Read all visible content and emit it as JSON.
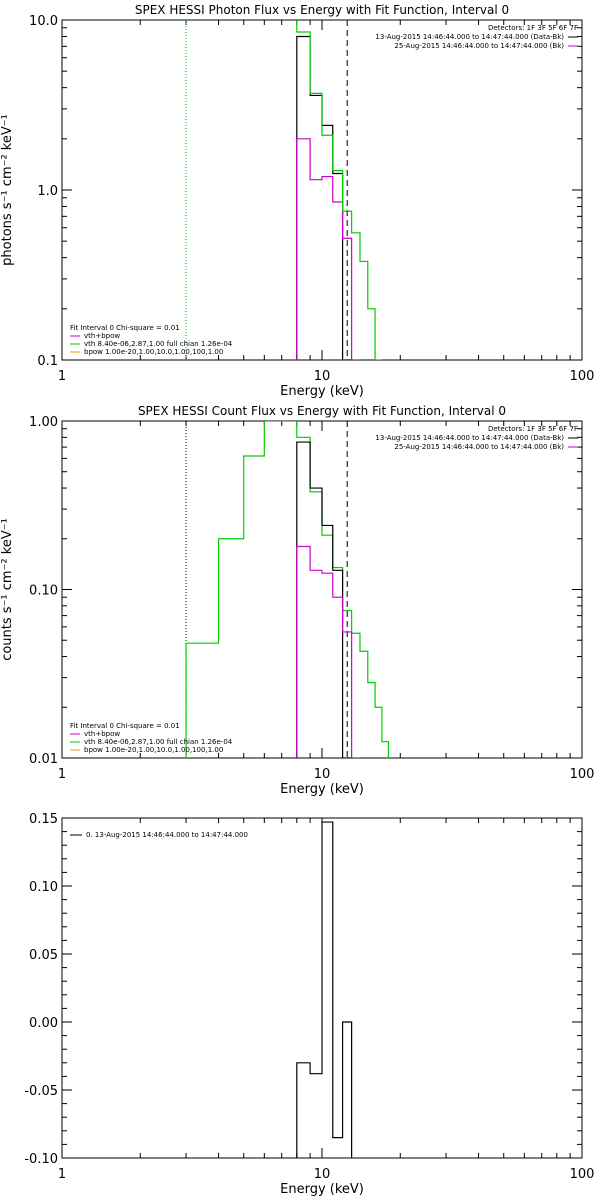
{
  "colors": {
    "data": "#000000",
    "bk": "#cc00cc",
    "fit": "#00cc00",
    "vth": "#00cc00",
    "bpow": "#e8a000",
    "frame": "#000000"
  },
  "chart_data": [
    {
      "type": "line",
      "title": "SPEX HESSI Photon Flux vs Energy with Fit Function, Interval 0",
      "xlabel": "Energy (keV)",
      "ylabel": "photons s⁻¹ cm⁻² keV⁻¹",
      "xscale": "log",
      "yscale": "log",
      "xlim": [
        1,
        100
      ],
      "ylim": [
        0.1,
        10
      ],
      "xticks": [
        {
          "v": 1,
          "label": "1"
        },
        {
          "v": 10,
          "label": "10"
        },
        {
          "v": 100,
          "label": "100"
        }
      ],
      "yticks": [
        {
          "v": 0.1,
          "label": "0.1"
        },
        {
          "v": 1,
          "label": "1.0"
        },
        {
          "v": 10,
          "label": "10.0"
        }
      ],
      "vlines": [
        {
          "x": 3.0,
          "style": "dotted",
          "colorKey": "fit"
        },
        {
          "x": 12.5,
          "style": "dashed",
          "colorKey": "data"
        }
      ],
      "legend_top": {
        "detectors": "Detectors: 1F 3F 5F 6F 7F",
        "items": [
          {
            "label": "13-Aug-2015 14:46:44.000 to 14:47:44.000 (Data-Bk)",
            "colorKey": "data"
          },
          {
            "label": "25-Aug-2015 14:46:44.000 to 14:47:44.000 (Bk)",
            "colorKey": "bk"
          }
        ]
      },
      "legend_bottom": {
        "header": "Fit Interval 0   Chi-square = 0.01",
        "items": [
          {
            "label": "vth+bpow",
            "colorKey": "bk"
          },
          {
            "label": "vth 8.40e-06,2.87,1.00  full chian 1.26e-04",
            "colorKey": "vth"
          },
          {
            "label": "bpow 1.00e-20,1.00,10.0,1.00,100,1.00",
            "colorKey": "bpow"
          }
        ]
      },
      "series": [
        {
          "name": "13-Aug-2015 14:46:44.000 to 14:47:44.000 (Data-Bk)",
          "colorKey": "data",
          "edges": [
            8.0,
            9.0,
            10.0,
            11.0,
            12.0,
            13.0
          ],
          "values": [
            8.0,
            3.6,
            2.4,
            1.25,
            0.1
          ]
        },
        {
          "name": "25-Aug-2015 14:46:44.000 to 14:47:44.000 (Bk)",
          "colorKey": "bk",
          "edges": [
            8.0,
            9.0,
            10.0,
            11.0,
            12.0,
            13.0,
            14.0
          ],
          "values": [
            2.0,
            1.15,
            1.2,
            0.85,
            0.52,
            0.1
          ]
        },
        {
          "name": "vth+bpow",
          "colorKey": "fit",
          "edges": [
            8.0,
            9.0,
            10.0,
            11.0,
            12.0,
            13.0,
            14.0,
            15.0,
            16.0,
            17.0
          ],
          "values": [
            8.5,
            3.7,
            2.1,
            1.3,
            0.75,
            0.56,
            0.38,
            0.2,
            0.1
          ],
          "lead": 12
        }
      ]
    },
    {
      "type": "line",
      "title": "SPEX HESSI Count Flux vs Energy with Fit Function, Interval 0",
      "xlabel": "Energy (keV)",
      "ylabel": "counts s⁻¹ cm⁻² keV⁻¹",
      "xscale": "log",
      "yscale": "log",
      "xlim": [
        1,
        100
      ],
      "ylim": [
        0.01,
        1
      ],
      "xticks": [
        {
          "v": 1,
          "label": "1"
        },
        {
          "v": 10,
          "label": "10"
        },
        {
          "v": 100,
          "label": "100"
        }
      ],
      "yticks": [
        {
          "v": 0.01,
          "label": "0.01"
        },
        {
          "v": 0.1,
          "label": "0.10"
        },
        {
          "v": 1,
          "label": "1.00"
        }
      ],
      "vlines": [
        {
          "x": 3.0,
          "style": "dotted",
          "colorKey": "data"
        },
        {
          "x": 12.5,
          "style": "dashed",
          "colorKey": "data"
        }
      ],
      "legend_top": {
        "detectors": "Detectors: 1F 3F 5F 6F 7F",
        "items": [
          {
            "label": "13-Aug-2015 14:46:44.000 to 14:47:44.000 (Data-Bk)",
            "colorKey": "data"
          },
          {
            "label": "25-Aug-2015 14:46:44.000 to 14:47:44.000 (Bk)",
            "colorKey": "bk"
          }
        ]
      },
      "legend_bottom": {
        "header": "Fit Interval 0   Chi-square = 0.01",
        "items": [
          {
            "label": "vth+bpow",
            "colorKey": "bk"
          },
          {
            "label": "vth 8.40e-06,2.87,1.00  full chian 1.26e-04",
            "colorKey": "vth"
          },
          {
            "label": "bpow 1.00e-20,1.00,10.0,1.00,100,1.00",
            "colorKey": "bpow"
          }
        ]
      },
      "series": [
        {
          "name": "vth+bpow",
          "colorKey": "fit",
          "edges": [
            3.0,
            4.0,
            5.0,
            6.0,
            7.0,
            8.0,
            9.0,
            10.0,
            11.0,
            12.0,
            13.0,
            14.0,
            15.0,
            16.0,
            17.0,
            18.0
          ],
          "values": [
            0.048,
            0.2,
            0.62,
            1.0,
            1.0,
            0.8,
            0.38,
            0.21,
            0.135,
            0.075,
            0.055,
            0.043,
            0.028,
            0.02,
            0.0125
          ],
          "startFloor": true
        },
        {
          "name": "13-Aug-2015 14:46:44.000 to 14:47:44.000 (Data-Bk)",
          "colorKey": "data",
          "edges": [
            8.0,
            9.0,
            10.0,
            11.0,
            12.0,
            13.0
          ],
          "values": [
            0.75,
            0.4,
            0.24,
            0.13,
            0.01
          ]
        },
        {
          "name": "25-Aug-2015 14:46:44.000 to 14:47:44.000 (Bk)",
          "colorKey": "bk",
          "edges": [
            8.0,
            9.0,
            10.0,
            11.0,
            12.0,
            13.0,
            14.0
          ],
          "values": [
            0.18,
            0.13,
            0.125,
            0.09,
            0.056,
            0.01
          ]
        }
      ]
    },
    {
      "type": "line",
      "title": "",
      "xlabel": "Energy (keV)",
      "ylabel": "",
      "xscale": "log",
      "yscale": "linear",
      "xlim": [
        1,
        100
      ],
      "ylim": [
        -0.1,
        0.15
      ],
      "xticks": [
        {
          "v": 1,
          "label": "1"
        },
        {
          "v": 10,
          "label": "10"
        },
        {
          "v": 100,
          "label": "100"
        }
      ],
      "yticks": [
        {
          "v": -0.1,
          "label": "-0.10"
        },
        {
          "v": -0.05,
          "label": "-0.05"
        },
        {
          "v": 0,
          "label": "0.00"
        },
        {
          "v": 0.05,
          "label": "0.05"
        },
        {
          "v": 0.1,
          "label": "0.10"
        },
        {
          "v": 0.15,
          "label": "0.15"
        }
      ],
      "vlines": [],
      "legend_top": {
        "detectors": "",
        "items": [
          {
            "label": "0. 13-Aug-2015 14:46:44.000 to 14:47:44.000",
            "colorKey": "data"
          }
        ]
      },
      "legend_bottom": {
        "header": "",
        "items": []
      },
      "series": [
        {
          "name": "0. 13-Aug-2015 14:46:44.000 to 14:47:44.000",
          "colorKey": "data",
          "edges": [
            8.0,
            9.0,
            10.0,
            11.0,
            12.0,
            13.0
          ],
          "values": [
            -0.03,
            -0.038,
            0.147,
            -0.085,
            0.0
          ],
          "startFloor": true,
          "endFloor": true
        }
      ]
    }
  ]
}
